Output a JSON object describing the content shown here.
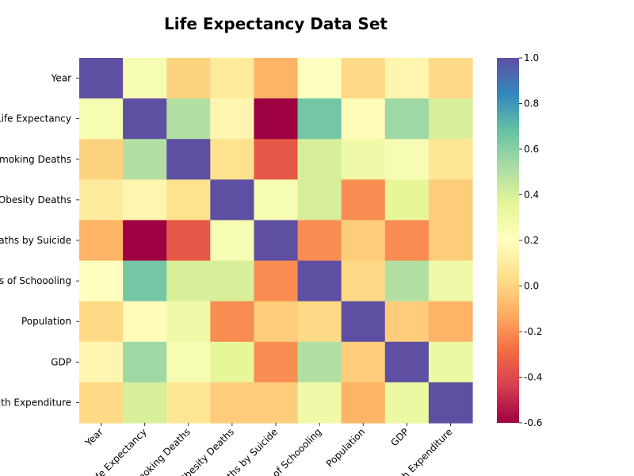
{
  "chart_data": {
    "type": "heatmap",
    "title": "Life Expectancy Data Set",
    "row_labels": [
      "Year",
      "Life Expectancy",
      "Smoking Deaths",
      "Obesity Deaths",
      "Deaths by Suicide",
      "Years of Schoooling",
      "Population",
      "GDP",
      "Health Expenditure"
    ],
    "col_labels": [
      "Year",
      "Life Expectancy",
      "Smoking Deaths",
      "Obesity Deaths",
      "Deaths by Suicide",
      "Years of Schoooling",
      "Population",
      "GDP",
      "Health Expenditure"
    ],
    "values": [
      [
        1.0,
        0.25,
        0.0,
        0.1,
        -0.1,
        0.2,
        0.02,
        0.15,
        0.02
      ],
      [
        0.25,
        1.0,
        0.5,
        0.15,
        -0.6,
        0.65,
        0.18,
        0.55,
        0.4
      ],
      [
        0.0,
        0.5,
        1.0,
        0.05,
        -0.35,
        0.4,
        0.3,
        0.25,
        0.07
      ],
      [
        0.1,
        0.15,
        0.05,
        1.0,
        0.25,
        0.4,
        -0.2,
        0.35,
        -0.02
      ],
      [
        -0.1,
        -0.6,
        -0.35,
        0.25,
        1.0,
        -0.2,
        -0.02,
        -0.2,
        -0.02
      ],
      [
        0.2,
        0.65,
        0.4,
        0.4,
        -0.2,
        1.0,
        0.02,
        0.5,
        0.3
      ],
      [
        0.02,
        0.18,
        0.3,
        -0.2,
        -0.02,
        0.02,
        1.0,
        -0.02,
        -0.1
      ],
      [
        0.15,
        0.55,
        0.25,
        0.35,
        -0.2,
        0.5,
        -0.02,
        1.0,
        0.32
      ],
      [
        0.02,
        0.4,
        0.07,
        -0.02,
        -0.02,
        0.3,
        -0.1,
        0.32,
        1.0
      ]
    ],
    "vmin": -0.6,
    "vmax": 1.0,
    "colormap": "Spectral",
    "colorbar_ticks": [
      "-0.6",
      "-0.4",
      "-0.2",
      "0.0",
      "0.2",
      "0.4",
      "0.6",
      "0.8",
      "1.0"
    ],
    "colorbar_tick_values": [
      -0.6,
      -0.4,
      -0.2,
      0.0,
      0.2,
      0.4,
      0.6,
      0.8,
      1.0
    ],
    "grid": false,
    "legend": "colorbar-right"
  }
}
